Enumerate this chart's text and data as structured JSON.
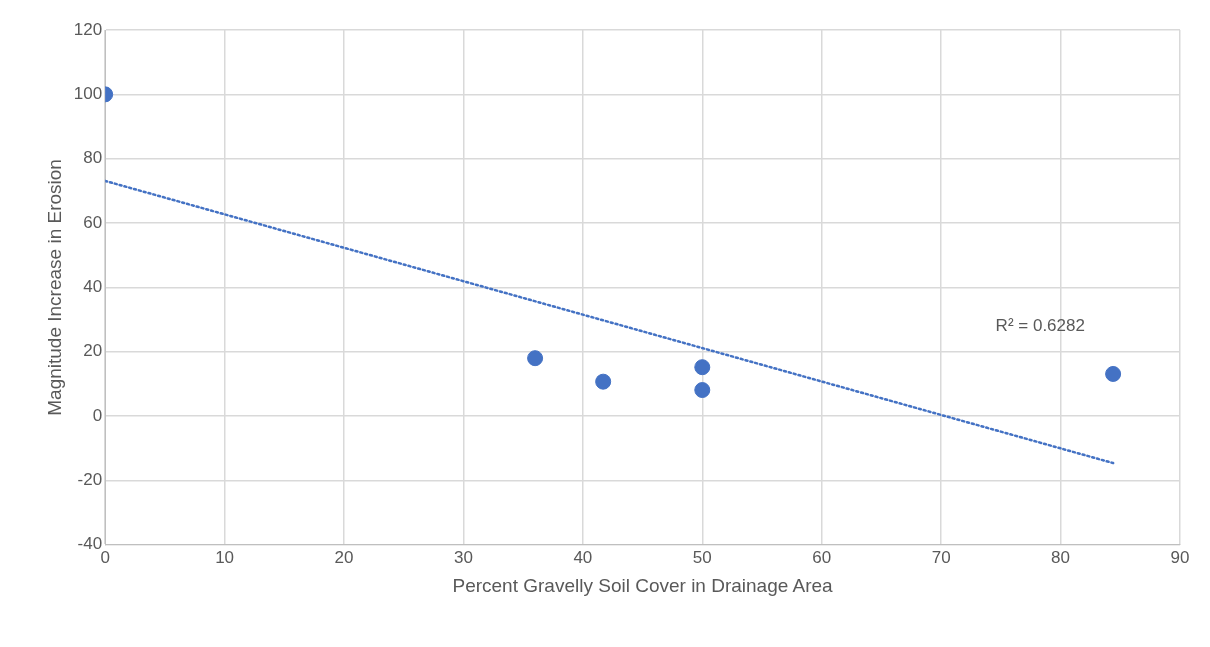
{
  "chart_data": {
    "type": "scatter",
    "xlabel": "Percent Gravelly Soil Cover in Drainage Area",
    "ylabel": "Magnitude Increase in Erosion",
    "series": [
      {
        "color": "#4472c4",
        "x": [
          0,
          36,
          41.7,
          50,
          50,
          84.4
        ],
        "values": [
          100,
          18,
          10.7,
          15.2,
          8.1,
          13.1
        ]
      },
      {
        "type": "line",
        "color": "#4472c4",
        "line_style": "dotted",
        "marker": "none",
        "x": [
          0,
          84.4
        ],
        "values": [
          73.1,
          -14.6
        ]
      }
    ],
    "annotations": [
      "R² = 0.6282"
    ],
    "xlim": [
      0,
      90
    ],
    "xticks": [
      0,
      10,
      20,
      30,
      40,
      50,
      60,
      70,
      80,
      90
    ],
    "ylim": [
      -40,
      120
    ],
    "yticks": [
      -40,
      -20,
      0,
      20,
      40,
      60,
      80,
      100,
      120
    ],
    "grid": true,
    "legend": false,
    "marker": "circle"
  }
}
